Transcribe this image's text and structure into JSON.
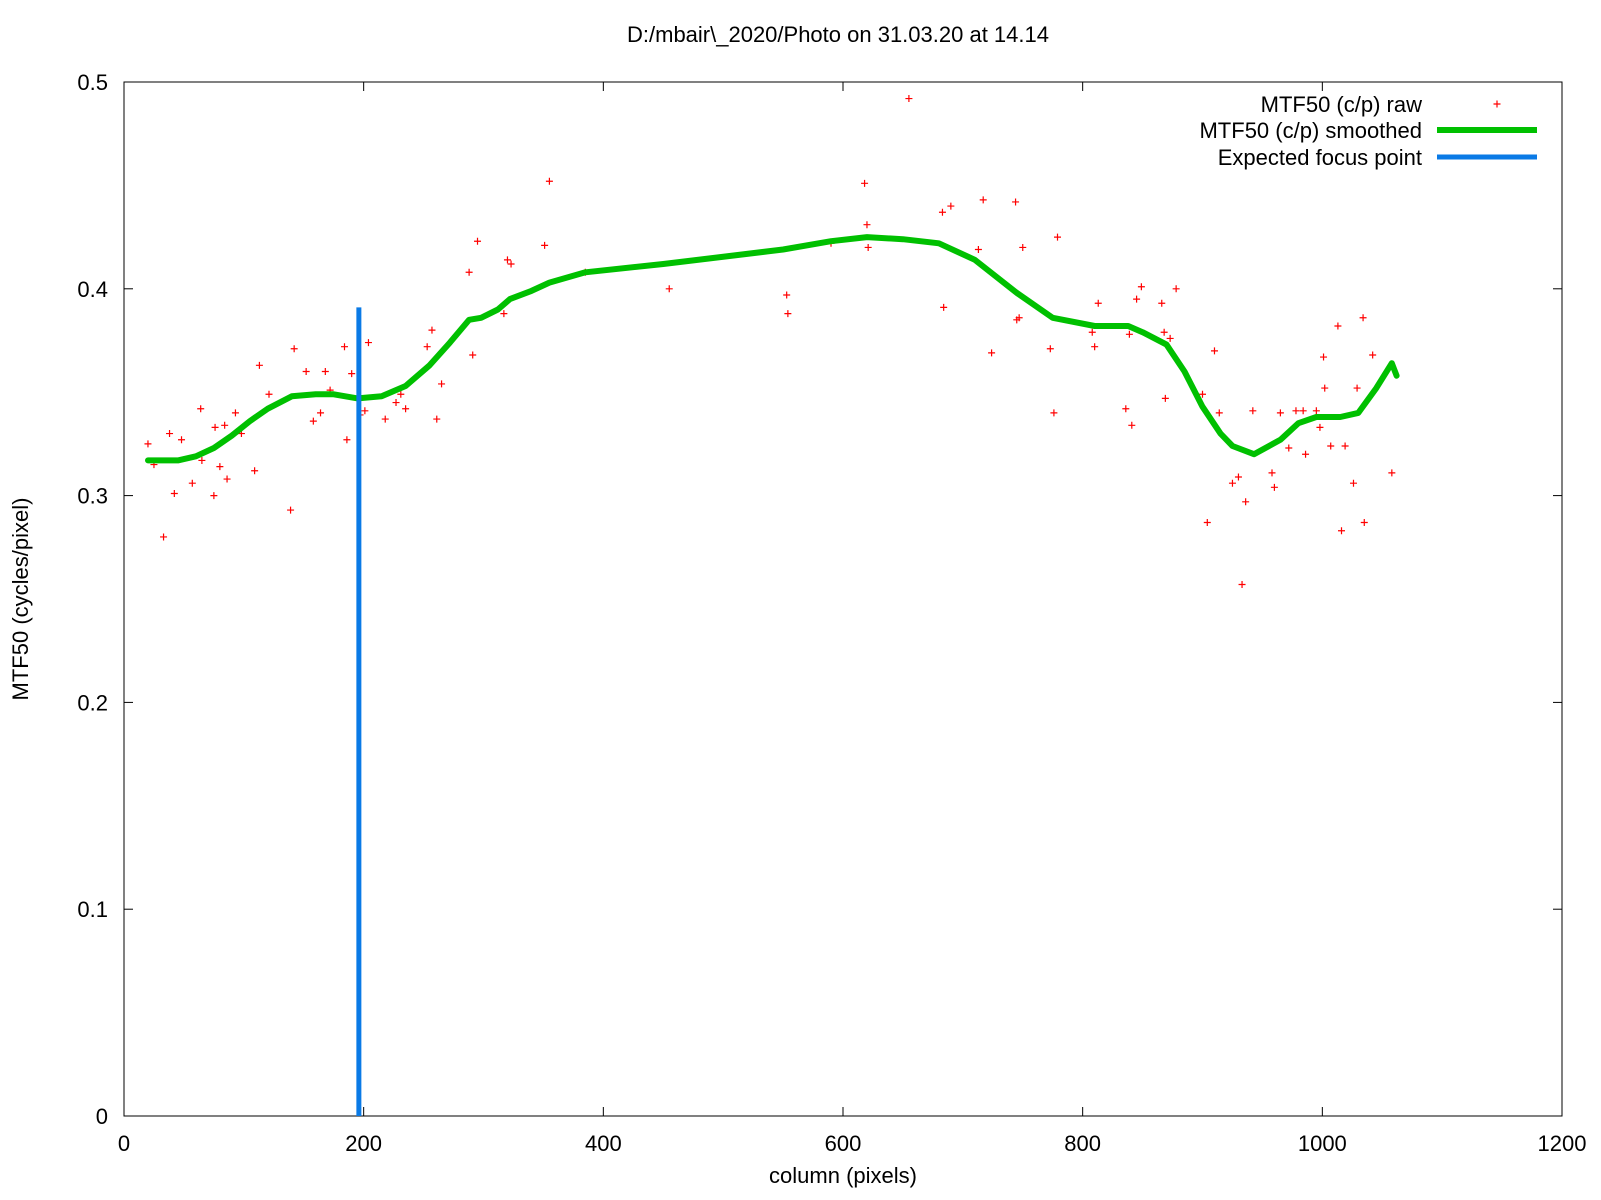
{
  "chart_data": {
    "type": "line",
    "title": "D:/mbair\\_2020/Photo on 31.03.20 at 14.14",
    "xlabel": "column (pixels)",
    "ylabel": "MTF50 (cycles/pixel)",
    "xlim": [
      0,
      1200
    ],
    "ylim": [
      0,
      0.5
    ],
    "xticks": [
      "0",
      "200",
      "400",
      "600",
      "800",
      "1000",
      "1200"
    ],
    "yticks": [
      "0",
      "0.1",
      "0.2",
      "0.3",
      "0.4",
      "0.5"
    ],
    "grid": false,
    "legend_position": "top-right",
    "series": [
      {
        "name": "MTF50 (c/p) raw",
        "style": "points",
        "color": "#ff0000",
        "points": [
          [
            20,
            0.325
          ],
          [
            25,
            0.315
          ],
          [
            33,
            0.28
          ],
          [
            38,
            0.33
          ],
          [
            42,
            0.301
          ],
          [
            48,
            0.327
          ],
          [
            57,
            0.306
          ],
          [
            64,
            0.342
          ],
          [
            65,
            0.317
          ],
          [
            75,
            0.3
          ],
          [
            76,
            0.333
          ],
          [
            80,
            0.314
          ],
          [
            84,
            0.334
          ],
          [
            86,
            0.308
          ],
          [
            93,
            0.34
          ],
          [
            98,
            0.33
          ],
          [
            109,
            0.312
          ],
          [
            113,
            0.363
          ],
          [
            121,
            0.349
          ],
          [
            139,
            0.293
          ],
          [
            142,
            0.371
          ],
          [
            152,
            0.36
          ],
          [
            158,
            0.336
          ],
          [
            164,
            0.34
          ],
          [
            168,
            0.36
          ],
          [
            172,
            0.351
          ],
          [
            184,
            0.372
          ],
          [
            186,
            0.327
          ],
          [
            190,
            0.359
          ],
          [
            197,
            0.339
          ],
          [
            201,
            0.341
          ],
          [
            204,
            0.374
          ],
          [
            218,
            0.337
          ],
          [
            227,
            0.345
          ],
          [
            231,
            0.349
          ],
          [
            235,
            0.342
          ],
          [
            253,
            0.372
          ],
          [
            257,
            0.38
          ],
          [
            261,
            0.337
          ],
          [
            265,
            0.354
          ],
          [
            288,
            0.408
          ],
          [
            291,
            0.368
          ],
          [
            295,
            0.423
          ],
          [
            317,
            0.388
          ],
          [
            320,
            0.414
          ],
          [
            323,
            0.412
          ],
          [
            351,
            0.421
          ],
          [
            355,
            0.452
          ],
          [
            385,
            0.408
          ],
          [
            455,
            0.4
          ],
          [
            553,
            0.397
          ],
          [
            554,
            0.388
          ],
          [
            590,
            0.422
          ],
          [
            618,
            0.451
          ],
          [
            620,
            0.431
          ],
          [
            621,
            0.42
          ],
          [
            655,
            0.492
          ],
          [
            683,
            0.437
          ],
          [
            684,
            0.391
          ],
          [
            690,
            0.44
          ],
          [
            713,
            0.419
          ],
          [
            717,
            0.443
          ],
          [
            724,
            0.369
          ],
          [
            744,
            0.442
          ],
          [
            745,
            0.385
          ],
          [
            747,
            0.386
          ],
          [
            750,
            0.42
          ],
          [
            773,
            0.371
          ],
          [
            776,
            0.34
          ],
          [
            779,
            0.425
          ],
          [
            808,
            0.379
          ],
          [
            810,
            0.372
          ],
          [
            813,
            0.393
          ],
          [
            836,
            0.342
          ],
          [
            839,
            0.378
          ],
          [
            841,
            0.334
          ],
          [
            845,
            0.395
          ],
          [
            849,
            0.401
          ],
          [
            866,
            0.393
          ],
          [
            868,
            0.379
          ],
          [
            869,
            0.347
          ],
          [
            873,
            0.376
          ],
          [
            878,
            0.4
          ],
          [
            900,
            0.349
          ],
          [
            904,
            0.287
          ],
          [
            910,
            0.37
          ],
          [
            914,
            0.34
          ],
          [
            925,
            0.306
          ],
          [
            930,
            0.309
          ],
          [
            933,
            0.257
          ],
          [
            936,
            0.297
          ],
          [
            942,
            0.341
          ],
          [
            958,
            0.311
          ],
          [
            960,
            0.304
          ],
          [
            965,
            0.34
          ],
          [
            972,
            0.323
          ],
          [
            978,
            0.341
          ],
          [
            984,
            0.341
          ],
          [
            986,
            0.32
          ],
          [
            995,
            0.341
          ],
          [
            998,
            0.333
          ],
          [
            1001,
            0.367
          ],
          [
            1002,
            0.352
          ],
          [
            1007,
            0.324
          ],
          [
            1013,
            0.382
          ],
          [
            1016,
            0.283
          ],
          [
            1019,
            0.324
          ],
          [
            1026,
            0.306
          ],
          [
            1029,
            0.352
          ],
          [
            1034,
            0.386
          ],
          [
            1035,
            0.287
          ],
          [
            1042,
            0.368
          ],
          [
            1058,
            0.311
          ]
        ]
      },
      {
        "name": "MTF50 (c/p) smoothed",
        "style": "line",
        "color": "#00c000",
        "points": [
          [
            20,
            0.317
          ],
          [
            30,
            0.317
          ],
          [
            45,
            0.317
          ],
          [
            60,
            0.319
          ],
          [
            75,
            0.323
          ],
          [
            90,
            0.329
          ],
          [
            105,
            0.336
          ],
          [
            120,
            0.342
          ],
          [
            140,
            0.348
          ],
          [
            160,
            0.349
          ],
          [
            175,
            0.349
          ],
          [
            195,
            0.347
          ],
          [
            215,
            0.348
          ],
          [
            235,
            0.353
          ],
          [
            255,
            0.363
          ],
          [
            272,
            0.374
          ],
          [
            288,
            0.385
          ],
          [
            298,
            0.386
          ],
          [
            312,
            0.39
          ],
          [
            322,
            0.395
          ],
          [
            340,
            0.399
          ],
          [
            355,
            0.403
          ],
          [
            385,
            0.408
          ],
          [
            450,
            0.412
          ],
          [
            550,
            0.419
          ],
          [
            590,
            0.423
          ],
          [
            620,
            0.425
          ],
          [
            650,
            0.424
          ],
          [
            680,
            0.422
          ],
          [
            710,
            0.414
          ],
          [
            745,
            0.398
          ],
          [
            775,
            0.386
          ],
          [
            810,
            0.382
          ],
          [
            838,
            0.382
          ],
          [
            850,
            0.379
          ],
          [
            870,
            0.373
          ],
          [
            885,
            0.36
          ],
          [
            900,
            0.343
          ],
          [
            915,
            0.33
          ],
          [
            925,
            0.324
          ],
          [
            943,
            0.32
          ],
          [
            965,
            0.327
          ],
          [
            980,
            0.335
          ],
          [
            995,
            0.338
          ],
          [
            1005,
            0.338
          ],
          [
            1015,
            0.338
          ],
          [
            1030,
            0.34
          ],
          [
            1045,
            0.352
          ],
          [
            1058,
            0.364
          ],
          [
            1062,
            0.358
          ]
        ]
      },
      {
        "name": "Expected focus point",
        "style": "vline",
        "color": "#0a7ae6",
        "x": 196,
        "y_range": [
          0,
          0.391
        ]
      }
    ]
  }
}
